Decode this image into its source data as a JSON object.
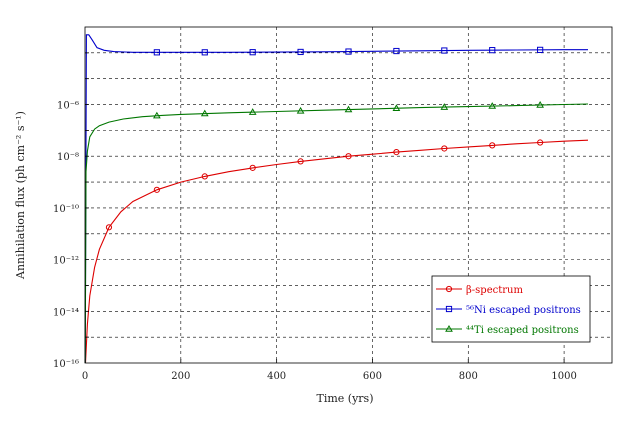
{
  "chart_data": {
    "type": "line",
    "title": "",
    "xlabel": "Time (yrs)",
    "ylabel": "Annihilation flux (ph cm⁻² s⁻¹)",
    "xlim": [
      0,
      1100
    ],
    "ylim_log10": [
      -16,
      -3
    ],
    "y_scale": "log",
    "grid": true,
    "legend_position": "bottom-right",
    "x_ticks": [
      0,
      200,
      400,
      600,
      800,
      1000
    ],
    "y_ticks": [
      {
        "exp": -6,
        "label": "10⁻⁶"
      },
      {
        "exp": -8,
        "label": "10⁻⁸"
      },
      {
        "exp": -10,
        "label": "10⁻¹⁰"
      },
      {
        "exp": -12,
        "label": "10⁻¹²"
      },
      {
        "exp": -14,
        "label": "10⁻¹⁴"
      },
      {
        "exp": -16,
        "label": "10⁻¹⁶"
      }
    ],
    "series": [
      {
        "name": "β-spectrum",
        "color": "#dd0000",
        "marker": "circle",
        "x": [
          1,
          5,
          10,
          20,
          30,
          50,
          75,
          100,
          150,
          200,
          250,
          300,
          350,
          400,
          450,
          500,
          550,
          600,
          650,
          700,
          750,
          800,
          850,
          900,
          950,
          1000,
          1050
        ],
        "log10_y": [
          -16,
          -14.5,
          -13.4,
          -12.3,
          -11.6,
          -10.75,
          -10.15,
          -9.75,
          -9.3,
          -9.0,
          -8.78,
          -8.6,
          -8.45,
          -8.32,
          -8.2,
          -8.1,
          -8.0,
          -7.92,
          -7.84,
          -7.77,
          -7.7,
          -7.64,
          -7.58,
          -7.52,
          -7.47,
          -7.42,
          -7.38
        ]
      },
      {
        "name": "⁵⁶Ni escaped positrons",
        "color": "#0000cc",
        "marker": "square",
        "x": [
          0.5,
          3,
          8,
          15,
          25,
          40,
          60,
          100,
          200,
          300,
          400,
          500,
          600,
          700,
          800,
          900,
          1000,
          1050
        ],
        "log10_y": [
          -16,
          -3.3,
          -3.3,
          -3.5,
          -3.8,
          -3.9,
          -3.95,
          -3.98,
          -3.98,
          -3.98,
          -3.97,
          -3.96,
          -3.94,
          -3.92,
          -3.9,
          -3.89,
          -3.88,
          -3.88
        ]
      },
      {
        "name": "⁴⁴Ti escaped positrons",
        "color": "#007700",
        "marker": "triangle",
        "x": [
          0.5,
          2,
          5,
          10,
          20,
          30,
          50,
          80,
          120,
          160,
          200,
          300,
          400,
          500,
          600,
          700,
          800,
          900,
          1000,
          1050
        ],
        "log10_y": [
          -16,
          -8.6,
          -7.8,
          -7.25,
          -6.95,
          -6.82,
          -6.68,
          -6.56,
          -6.47,
          -6.42,
          -6.38,
          -6.32,
          -6.27,
          -6.22,
          -6.17,
          -6.12,
          -6.08,
          -6.04,
          -6.0,
          -5.98
        ]
      }
    ],
    "marker_x": {
      "beta": [
        50,
        150,
        250,
        350,
        450,
        550,
        650,
        750,
        850,
        950
      ],
      "ni": [
        150,
        250,
        350,
        450,
        550,
        650,
        750,
        850,
        950
      ],
      "ti": [
        150,
        250,
        350,
        450,
        550,
        650,
        750,
        850,
        950
      ]
    }
  }
}
